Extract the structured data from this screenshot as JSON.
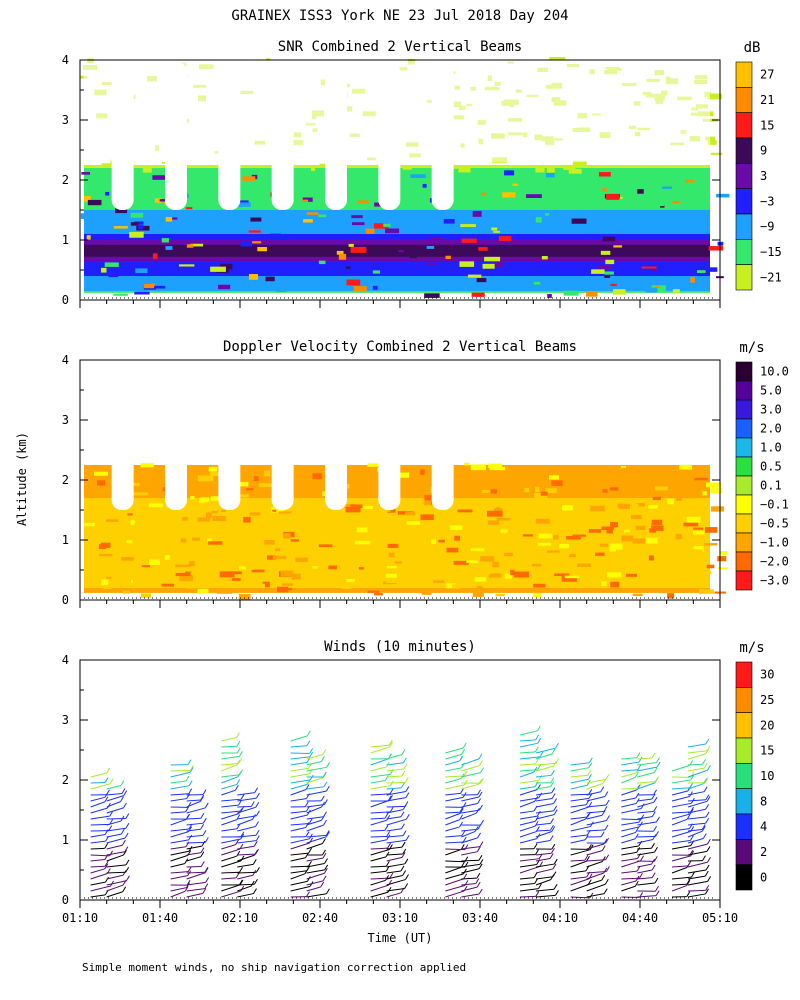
{
  "title": "GRAINEX ISS3 York NE  23 Jul 2018 Day 204",
  "xlabel": "Time (UT)",
  "ylabel": "Altitude (km)",
  "footnote": "Simple moment winds, no ship navigation correction applied",
  "chart_data": [
    {
      "type": "heatmap",
      "title": "SNR Combined 2 Vertical Beams",
      "unit": "dB",
      "xlim": [
        "01:10",
        "05:10"
      ],
      "ylim": [
        0,
        4
      ],
      "yticks": [
        "0",
        "1",
        "2",
        "3",
        "4"
      ],
      "colorbar": {
        "labels": [
          "27",
          "21",
          "15",
          "9",
          "3",
          "−3",
          "−9",
          "−15",
          "−21"
        ],
        "colors": [
          "#ffc000",
          "#ff8c00",
          "#ff1a1a",
          "#3d0a5a",
          "#6a0aa8",
          "#1f1fff",
          "#1ea0ff",
          "#33e86a",
          "#c8f020"
        ]
      }
    },
    {
      "type": "heatmap",
      "title": "Doppler Velocity Combined 2 Vertical Beams",
      "unit": "m/s",
      "xlim": [
        "01:10",
        "05:10"
      ],
      "ylim": [
        0,
        4
      ],
      "yticks": [
        "0",
        "1",
        "2",
        "3",
        "4"
      ],
      "colorbar": {
        "labels": [
          "10.0",
          "5.0",
          "3.0",
          "2.0",
          "1.0",
          "0.5",
          "0.1",
          "−0.1",
          "−0.5",
          "−1.0",
          "−2.0",
          "−3.0"
        ],
        "colors": [
          "#2a0030",
          "#55009a",
          "#3a18e0",
          "#1a60ff",
          "#18b8e8",
          "#28e040",
          "#a6ec28",
          "#ffff00",
          "#ffd000",
          "#ffa500",
          "#ff6a00",
          "#ff1a1a"
        ]
      }
    },
    {
      "type": "scatter",
      "title": "Winds (10 minutes)",
      "unit": "m/s",
      "xlim": [
        "01:10",
        "05:10"
      ],
      "ylim": [
        0,
        4
      ],
      "yticks": [
        "0",
        "1",
        "2",
        "3",
        "4"
      ],
      "xticks": [
        "01:10",
        "01:40",
        "02:10",
        "02:40",
        "03:10",
        "03:40",
        "04:10",
        "04:40",
        "05:10"
      ],
      "colorbar": {
        "labels": [
          "30",
          "25",
          "20",
          "15",
          "10",
          "8",
          "4",
          "2",
          "0"
        ],
        "colors": [
          "#ff1a1a",
          "#ff8c00",
          "#ffc000",
          "#a6ec28",
          "#28e07a",
          "#18b0e8",
          "#1a30ff",
          "#5a0a78",
          "#000000"
        ]
      },
      "profiles": [
        {
          "time": "01:14",
          "top": 2.1
        },
        {
          "time": "01:20",
          "top": 1.9
        },
        {
          "time": "01:44",
          "top": 2.3
        },
        {
          "time": "01:50",
          "top": 1.8
        },
        {
          "time": "02:03",
          "top": 2.7
        },
        {
          "time": "02:09",
          "top": 1.8
        },
        {
          "time": "02:29",
          "top": 2.7
        },
        {
          "time": "02:35",
          "top": 2.4
        },
        {
          "time": "02:59",
          "top": 2.6
        },
        {
          "time": "03:05",
          "top": 2.4
        },
        {
          "time": "03:27",
          "top": 2.5
        },
        {
          "time": "03:33",
          "top": 2.3
        },
        {
          "time": "03:55",
          "top": 2.8
        },
        {
          "time": "04:01",
          "top": 2.5
        },
        {
          "time": "04:14",
          "top": 2.3
        },
        {
          "time": "04:20",
          "top": 2.0
        },
        {
          "time": "04:33",
          "top": 2.4
        },
        {
          "time": "04:39",
          "top": 2.4
        },
        {
          "time": "04:52",
          "top": 2.2
        },
        {
          "time": "04:58",
          "top": 2.6
        }
      ]
    }
  ]
}
